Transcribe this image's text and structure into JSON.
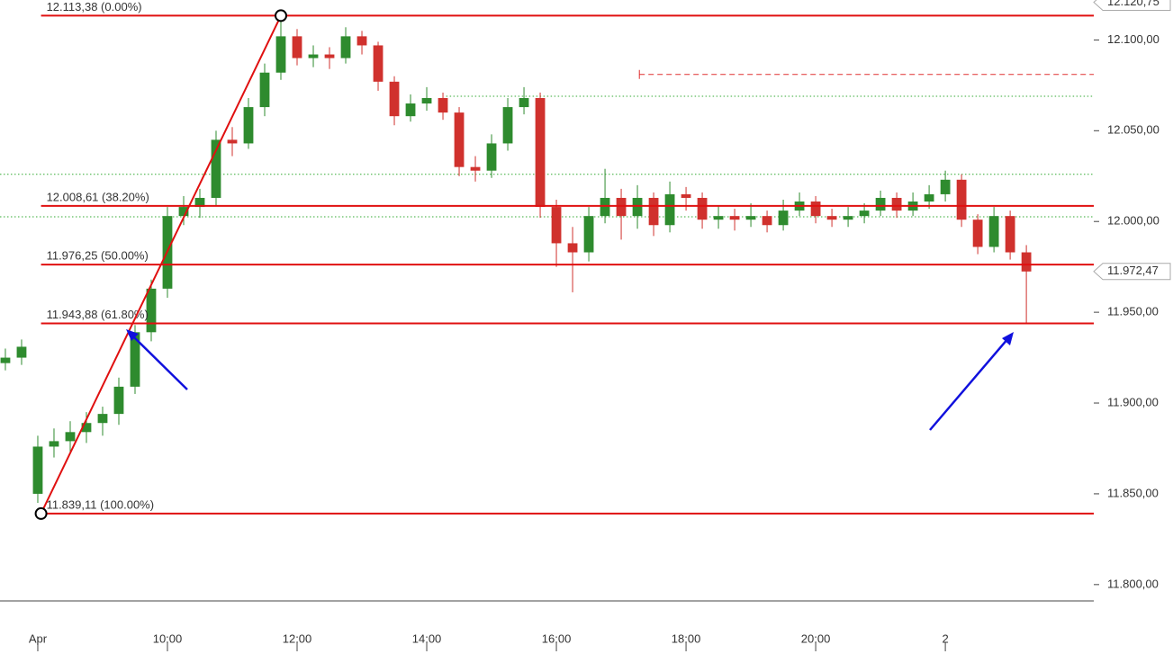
{
  "chart_data": {
    "type": "candlestick",
    "x": [
      7.5,
      7.75,
      8,
      8.25,
      8.5,
      8.75,
      9,
      9.25,
      9.5,
      9.75,
      10,
      10.25,
      10.5,
      10.75,
      11,
      11.25,
      11.5,
      11.75,
      12,
      12.25,
      12.5,
      12.75,
      13,
      13.25,
      13.5,
      13.75,
      14,
      14.25,
      14.5,
      14.75,
      15,
      15.25,
      15.5,
      15.75,
      16,
      16.25,
      16.5,
      16.75,
      17,
      17.25,
      17.5,
      17.75,
      18,
      18.25,
      18.5,
      18.75,
      19,
      19.25,
      19.5,
      19.75,
      20,
      20.25,
      20.5,
      20.75,
      21,
      21.25,
      21.5,
      21.75,
      22,
      22.25,
      22.5,
      22.75,
      23,
      23.25
    ],
    "open": [
      11922,
      11925,
      11850,
      11876,
      11879,
      11884,
      11889,
      11894,
      11909,
      11939,
      11963,
      12003,
      12008,
      12013,
      12045,
      12043,
      12063,
      12082,
      12102,
      12090,
      12092,
      12090,
      12102,
      12097,
      12077,
      12058,
      12065,
      12068,
      12060,
      12030,
      12028,
      12043,
      12063,
      12068,
      12008,
      11988,
      11983,
      12003,
      12013,
      12003,
      12013,
      11998,
      12015,
      12013,
      12001,
      12003,
      12001,
      12003,
      11998,
      12006,
      12011,
      12003,
      12001,
      12003,
      12006,
      12013,
      12006,
      12011,
      12015,
      12023,
      12001,
      11986,
      12003,
      11983
    ],
    "high": [
      11930,
      11935,
      11882,
      11886,
      11890,
      11895,
      11898,
      11914,
      11943,
      11968,
      12008,
      12014,
      12018,
      12050,
      12052,
      12068,
      12087,
      12113,
      12106,
      12097,
      12096,
      12107,
      12105,
      12099,
      12080,
      12070,
      12074,
      12071,
      12063,
      12036,
      12048,
      12068,
      12074,
      12071,
      12012,
      11997,
      12008,
      12029,
      12018,
      12020,
      12016,
      12022,
      12019,
      12016,
      12009,
      12007,
      12010,
      12006,
      12012,
      12016,
      12014,
      12007,
      12008,
      12010,
      12017,
      12016,
      12016,
      12020,
      12028,
      12026,
      12004,
      12008,
      12006,
      11987
    ],
    "low": [
      11918,
      11921,
      11845,
      11870,
      11873,
      11878,
      11882,
      11888,
      11905,
      11934,
      11958,
      11998,
      12002,
      12009,
      12036,
      12040,
      12058,
      12078,
      12086,
      12085,
      12084,
      12087,
      12092,
      12072,
      12053,
      12055,
      12061,
      12056,
      12025,
      12022,
      12024,
      12039,
      12059,
      12002,
      11975,
      11961,
      11978,
      11999,
      11990,
      11996,
      11992,
      11994,
      12006,
      11996,
      11996,
      11995,
      11997,
      11994,
      11995,
      12003,
      11999,
      11997,
      11997,
      11999,
      12003,
      12002,
      12003,
      12007,
      12011,
      11997,
      11982,
      11983,
      11979,
      11944
    ],
    "close": [
      11925,
      11931,
      11876,
      11879,
      11884,
      11889,
      11894,
      11909,
      11939,
      11963,
      12003,
      12008,
      12013,
      12045,
      12043,
      12063,
      12082,
      12102,
      12090,
      12092,
      12090,
      12102,
      12097,
      12077,
      12058,
      12065,
      12068,
      12060,
      12030,
      12028,
      12043,
      12063,
      12068,
      12008,
      11988,
      11983,
      12003,
      12013,
      12003,
      12013,
      11998,
      12015,
      12013,
      12001,
      12003,
      12001,
      12003,
      11998,
      12006,
      12011,
      12003,
      12001,
      12003,
      12006,
      12013,
      12006,
      12011,
      12015,
      12023,
      12001,
      11986,
      12003,
      11983,
      11972.47
    ],
    "up_color": "#2e8b2e",
    "down_color": "#d0312d",
    "xlim": [
      7.417,
      24.29
    ],
    "ylim": [
      11791,
      12122
    ],
    "xticks": [
      {
        "value": 8,
        "label": "Apr"
      },
      {
        "value": 10,
        "label": "10:00"
      },
      {
        "value": 12,
        "label": "12:00"
      },
      {
        "value": 14,
        "label": "14:00"
      },
      {
        "value": 16,
        "label": "16:00"
      },
      {
        "value": 18,
        "label": "18:00"
      },
      {
        "value": 20,
        "label": "20:00"
      },
      {
        "value": 22,
        "label": "2"
      }
    ],
    "yticks": [
      {
        "value": 11800,
        "label": "11.800,00"
      },
      {
        "value": 11850,
        "label": "11.850,00"
      },
      {
        "value": 11900,
        "label": "11.900,00"
      },
      {
        "value": 11950,
        "label": "11.950,00"
      },
      {
        "value": 12000,
        "label": "12.000,00"
      },
      {
        "value": 12050,
        "label": "12.050,00"
      },
      {
        "value": 12100,
        "label": "12.100,00"
      }
    ],
    "fib_color": "#e01010",
    "fib_levels": [
      {
        "value": 12113.38,
        "label": "12.113,38 (0.00%)"
      },
      {
        "value": 12008.61,
        "label": "12.008,61 (38.20%)"
      },
      {
        "value": 11976.25,
        "label": "11.976,25 (50.00%)"
      },
      {
        "value": 11943.88,
        "label": "11.943,88 (61.80%)"
      },
      {
        "value": 11839.11,
        "label": "11.839,11 (100.00%)"
      }
    ],
    "fib_x": [
      8.05,
      11.75
    ],
    "guide_lines": [
      {
        "value": 12069,
        "from": 14.3,
        "color": "#33aa33",
        "style": "dotted"
      },
      {
        "value": 12026,
        "from": 7.417,
        "color": "#33aa33",
        "style": "dotted"
      },
      {
        "value": 12002.6,
        "from": 7.417,
        "color": "#33aa33",
        "style": "dotted"
      },
      {
        "value": 12081,
        "from": 17.28,
        "color": "#e03030",
        "style": "dashed"
      }
    ],
    "last_price": {
      "value": 11972.47,
      "label": "11.972,47"
    },
    "high_price": {
      "value": 12120.75,
      "label": "12.120,75"
    }
  }
}
